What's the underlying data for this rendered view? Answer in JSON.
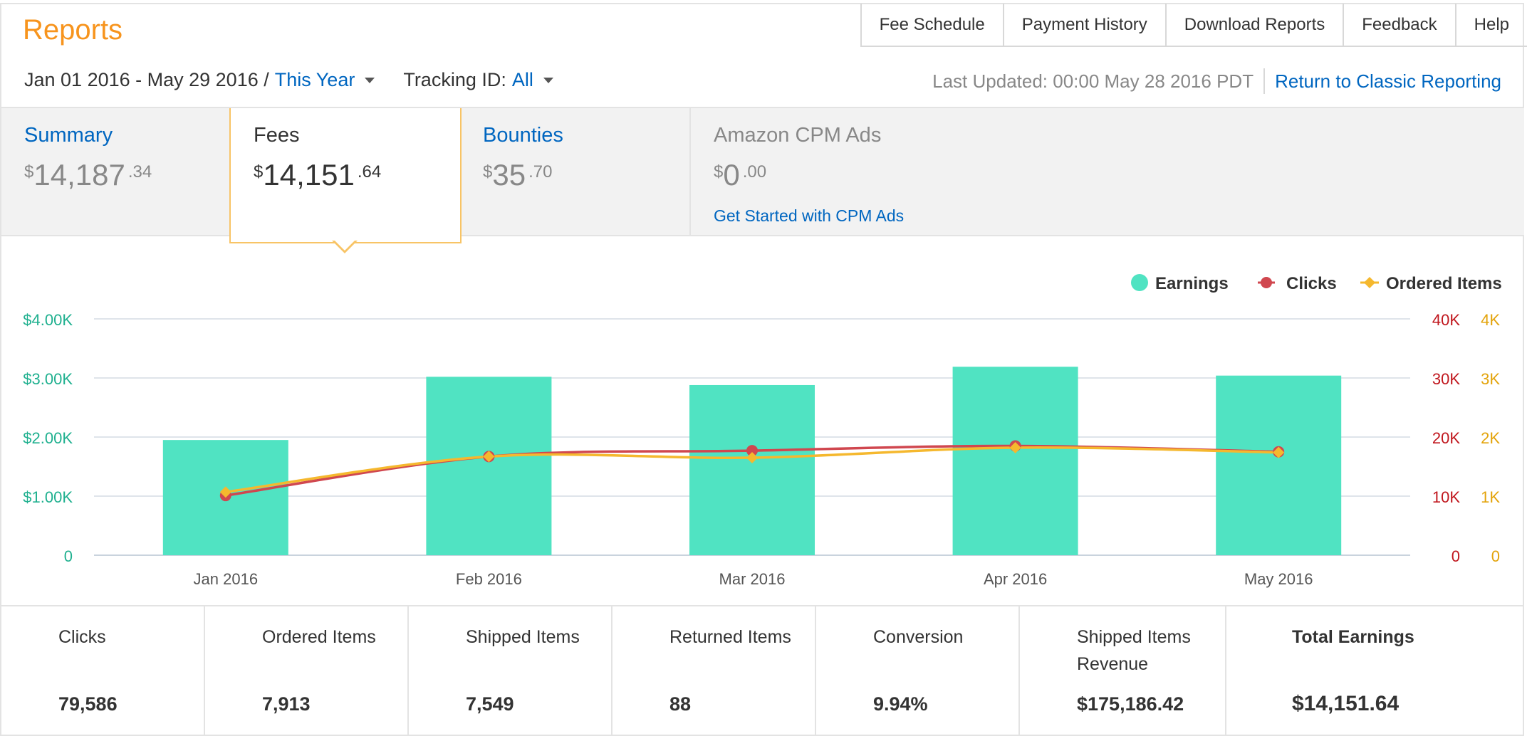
{
  "header": {
    "title": "Reports",
    "nav": [
      "Fee Schedule",
      "Payment History",
      "Download Reports",
      "Feedback",
      "Help"
    ]
  },
  "filters": {
    "date_range": "Jan 01 2016 - May 29 2016 /",
    "date_preset": "This Year",
    "tracking_label": "Tracking ID:",
    "tracking_value": "All"
  },
  "status": {
    "last_updated": "Last Updated: 00:00 May 28 2016 PDT",
    "classic_link": "Return to Classic Reporting"
  },
  "tabs": {
    "summary": {
      "label": "Summary",
      "currency": "$",
      "whole": "14,187",
      "cents": ".34"
    },
    "fees": {
      "label": "Fees",
      "currency": "$",
      "whole": "14,151",
      "cents": ".64"
    },
    "bounties": {
      "label": "Bounties",
      "currency": "$",
      "whole": "35",
      "cents": ".70"
    },
    "cpm": {
      "label": "Amazon CPM Ads",
      "currency": "$",
      "whole": "0",
      "cents": ".00",
      "cta": "Get Started with CPM Ads"
    }
  },
  "colors": {
    "earnings": "#50e3c2",
    "clicks": "#d0474f",
    "ordered_items": "#f5b82e",
    "earnings_axis": "#1fb08f",
    "clicks_axis": "#c0161d",
    "ordered_axis": "#e3a30a",
    "accent_title": "#f7941d",
    "link": "#0066c0"
  },
  "chart_data": {
    "type": "bar",
    "categories": [
      "Jan 2016",
      "Feb 2016",
      "Mar 2016",
      "Apr 2016",
      "May 2016"
    ],
    "series": [
      {
        "name": "Earnings",
        "type": "bar",
        "axis": "left",
        "values": [
          1950,
          3020,
          2880,
          3190,
          3040
        ]
      },
      {
        "name": "Clicks",
        "type": "line",
        "axis": "right-1",
        "values": [
          10100,
          16700,
          17700,
          18500,
          17500
        ]
      },
      {
        "name": "Ordered Items",
        "type": "line",
        "axis": "right-2",
        "values": [
          1070,
          1670,
          1650,
          1820,
          1740
        ]
      }
    ],
    "axes": {
      "left": {
        "ticks": [
          "0",
          "$1.00K",
          "$2.00K",
          "$3.00K",
          "$4.00K"
        ],
        "range": [
          0,
          4000
        ]
      },
      "right1": {
        "ticks": [
          "0",
          "10K",
          "20K",
          "30K",
          "40K"
        ],
        "range": [
          0,
          40000
        ]
      },
      "right2": {
        "ticks": [
          "0",
          "1K",
          "2K",
          "3K",
          "4K"
        ],
        "range": [
          0,
          4000
        ]
      }
    },
    "grid": true,
    "legend_position": "top-right"
  },
  "stats": [
    {
      "label": "Clicks",
      "value": "79,586"
    },
    {
      "label": "Ordered Items",
      "value": "7,913"
    },
    {
      "label": "Shipped Items",
      "value": "7,549"
    },
    {
      "label": "Returned Items",
      "value": "88"
    },
    {
      "label": "Conversion",
      "value": "9.94%"
    },
    {
      "label": "Shipped Items Revenue",
      "value": "$175,186.42"
    },
    {
      "label": "Total Earnings",
      "value": "$14,151.64"
    }
  ]
}
